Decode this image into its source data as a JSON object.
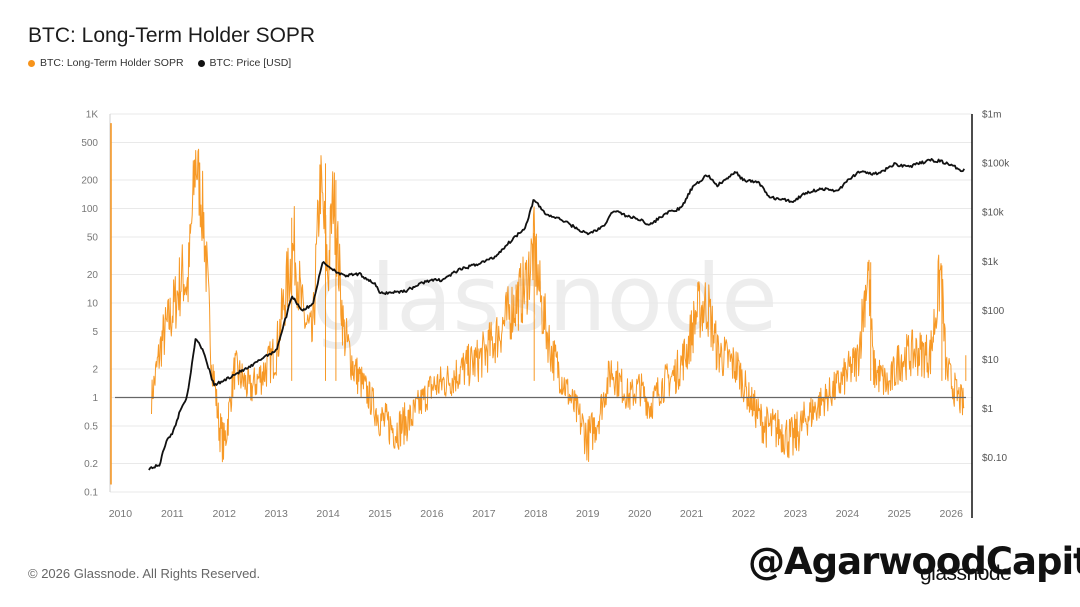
{
  "header": {
    "title": "BTC: Long-Term Holder SOPR"
  },
  "legend": [
    {
      "label": "BTC: Long-Term Holder SOPR",
      "color": "#f7931a"
    },
    {
      "label": "BTC: Price [USD]",
      "color": "#111111"
    }
  ],
  "footer": {
    "copyright": "© 2026 Glassnode. All Rights Reserved.",
    "brand": "glassnode",
    "overlay": "@AgarwoodCapital"
  },
  "watermark": "glassnode",
  "chart_data": {
    "type": "line",
    "title": "BTC: Long-Term Holder SOPR",
    "xlabel": "",
    "ylabel_left": "",
    "ylabel_right": "",
    "x_range": [
      2009.8,
      2026.4
    ],
    "x_ticks": [
      "2010",
      "2011",
      "2012",
      "2013",
      "2014",
      "2015",
      "2016",
      "2017",
      "2018",
      "2019",
      "2020",
      "2021",
      "2022",
      "2023",
      "2024",
      "2025",
      "2026"
    ],
    "left_axis": {
      "scale": "log",
      "range": [
        0.1,
        1000
      ],
      "ticks": [
        {
          "v": 1000,
          "label": "1K"
        },
        {
          "v": 500,
          "label": "500"
        },
        {
          "v": 200,
          "label": "200"
        },
        {
          "v": 100,
          "label": "100"
        },
        {
          "v": 50,
          "label": "50"
        },
        {
          "v": 20,
          "label": "20"
        },
        {
          "v": 10,
          "label": "10"
        },
        {
          "v": 5,
          "label": "5"
        },
        {
          "v": 2,
          "label": "2"
        },
        {
          "v": 1,
          "label": "1"
        },
        {
          "v": 0.5,
          "label": "0.5"
        },
        {
          "v": 0.2,
          "label": "0.2"
        },
        {
          "v": 0.1,
          "label": "0.1"
        }
      ]
    },
    "right_axis": {
      "scale": "log",
      "range": [
        0.02,
        1000000
      ],
      "ticks": [
        {
          "v": 1000000,
          "label": "$1m"
        },
        {
          "v": 100000,
          "label": "$100k"
        },
        {
          "v": 10000,
          "label": "$10k"
        },
        {
          "v": 1000,
          "label": "$1k"
        },
        {
          "v": 100,
          "label": "$100"
        },
        {
          "v": 10,
          "label": "$10"
        },
        {
          "v": 1,
          "label": "$1"
        },
        {
          "v": 0.1,
          "label": "$0.10"
        }
      ]
    },
    "reference_line": {
      "axis": "left",
      "value": 1
    },
    "series": [
      {
        "name": "BTC: Long-Term Holder SOPR",
        "axis": "left",
        "color": "#f7931a",
        "points": [
          [
            2010.6,
            1.0
          ],
          [
            2010.8,
            4
          ],
          [
            2011.0,
            8
          ],
          [
            2011.2,
            20
          ],
          [
            2011.3,
            15
          ],
          [
            2011.45,
            350
          ],
          [
            2011.6,
            80
          ],
          [
            2011.75,
            3
          ],
          [
            2011.9,
            0.5
          ],
          [
            2012.0,
            0.3
          ],
          [
            2012.2,
            2
          ],
          [
            2012.5,
            1.2
          ],
          [
            2012.8,
            2
          ],
          [
            2013.0,
            3
          ],
          [
            2013.2,
            15
          ],
          [
            2013.35,
            40
          ],
          [
            2013.5,
            8
          ],
          [
            2013.7,
            4
          ],
          [
            2013.85,
            200
          ],
          [
            2014.0,
            20
          ],
          [
            2014.1,
            150
          ],
          [
            2014.3,
            5
          ],
          [
            2014.5,
            2
          ],
          [
            2014.8,
            1
          ],
          [
            2015.0,
            0.6
          ],
          [
            2015.3,
            0.45
          ],
          [
            2015.6,
            0.6
          ],
          [
            2015.8,
            0.9
          ],
          [
            2016.0,
            1.3
          ],
          [
            2016.3,
            1.5
          ],
          [
            2016.6,
            2
          ],
          [
            2016.9,
            2.5
          ],
          [
            2017.2,
            4
          ],
          [
            2017.5,
            8
          ],
          [
            2017.8,
            15
          ],
          [
            2017.97,
            40
          ],
          [
            2018.1,
            10
          ],
          [
            2018.3,
            3
          ],
          [
            2018.6,
            1.2
          ],
          [
            2018.9,
            0.5
          ],
          [
            2019.0,
            0.35
          ],
          [
            2019.2,
            0.6
          ],
          [
            2019.45,
            2
          ],
          [
            2019.6,
            1.5
          ],
          [
            2019.8,
            1
          ],
          [
            2020.0,
            1.3
          ],
          [
            2020.2,
            0.8
          ],
          [
            2020.4,
            1.3
          ],
          [
            2020.7,
            1.8
          ],
          [
            2020.9,
            3
          ],
          [
            2021.1,
            8
          ],
          [
            2021.3,
            10
          ],
          [
            2021.5,
            3
          ],
          [
            2021.7,
            2.5
          ],
          [
            2021.9,
            2
          ],
          [
            2022.1,
            1
          ],
          [
            2022.4,
            0.5
          ],
          [
            2022.7,
            0.45
          ],
          [
            2022.95,
            0.35
          ],
          [
            2023.2,
            0.6
          ],
          [
            2023.5,
            0.9
          ],
          [
            2023.8,
            1.3
          ],
          [
            2024.0,
            1.8
          ],
          [
            2024.2,
            2.5
          ],
          [
            2024.4,
            25
          ],
          [
            2024.5,
            2
          ],
          [
            2024.8,
            1.3
          ],
          [
            2025.0,
            2.5
          ],
          [
            2025.3,
            3
          ],
          [
            2025.6,
            2.8
          ],
          [
            2025.8,
            22
          ],
          [
            2025.9,
            2
          ],
          [
            2026.1,
            1.1
          ],
          [
            2026.25,
            0.8
          ]
        ]
      },
      {
        "name": "BTC: Price [USD]",
        "axis": "right",
        "color": "#111111",
        "points": [
          [
            2010.55,
            0.06
          ],
          [
            2010.75,
            0.07
          ],
          [
            2010.9,
            0.25
          ],
          [
            2011.0,
            0.3
          ],
          [
            2011.15,
            0.9
          ],
          [
            2011.3,
            2
          ],
          [
            2011.45,
            28
          ],
          [
            2011.6,
            15
          ],
          [
            2011.8,
            3
          ],
          [
            2011.95,
            3.5
          ],
          [
            2012.2,
            5
          ],
          [
            2012.5,
            7
          ],
          [
            2012.8,
            12
          ],
          [
            2013.0,
            15
          ],
          [
            2013.2,
            80
          ],
          [
            2013.3,
            200
          ],
          [
            2013.5,
            100
          ],
          [
            2013.7,
            130
          ],
          [
            2013.9,
            1000
          ],
          [
            2014.0,
            800
          ],
          [
            2014.3,
            500
          ],
          [
            2014.6,
            550
          ],
          [
            2014.9,
            350
          ],
          [
            2015.0,
            220
          ],
          [
            2015.5,
            250
          ],
          [
            2015.9,
            400
          ],
          [
            2016.2,
            420
          ],
          [
            2016.5,
            650
          ],
          [
            2016.9,
            900
          ],
          [
            2017.2,
            1200
          ],
          [
            2017.5,
            2500
          ],
          [
            2017.8,
            5000
          ],
          [
            2017.96,
            18000
          ],
          [
            2018.2,
            9000
          ],
          [
            2018.5,
            7000
          ],
          [
            2018.9,
            4000
          ],
          [
            2019.0,
            3600
          ],
          [
            2019.3,
            5000
          ],
          [
            2019.5,
            11000
          ],
          [
            2019.8,
            8000
          ],
          [
            2020.0,
            7200
          ],
          [
            2020.2,
            5500
          ],
          [
            2020.5,
            9500
          ],
          [
            2020.8,
            12000
          ],
          [
            2021.0,
            30000
          ],
          [
            2021.3,
            58000
          ],
          [
            2021.5,
            35000
          ],
          [
            2021.85,
            65000
          ],
          [
            2022.0,
            45000
          ],
          [
            2022.3,
            40000
          ],
          [
            2022.5,
            20000
          ],
          [
            2022.95,
            16500
          ],
          [
            2023.2,
            25000
          ],
          [
            2023.5,
            30000
          ],
          [
            2023.8,
            27000
          ],
          [
            2024.0,
            43000
          ],
          [
            2024.2,
            65000
          ],
          [
            2024.6,
            60000
          ],
          [
            2024.9,
            95000
          ],
          [
            2025.2,
            85000
          ],
          [
            2025.6,
            115000
          ],
          [
            2025.8,
            110000
          ],
          [
            2026.0,
            90000
          ],
          [
            2026.2,
            72000
          ],
          [
            2026.25,
            75000
          ]
        ]
      }
    ]
  }
}
